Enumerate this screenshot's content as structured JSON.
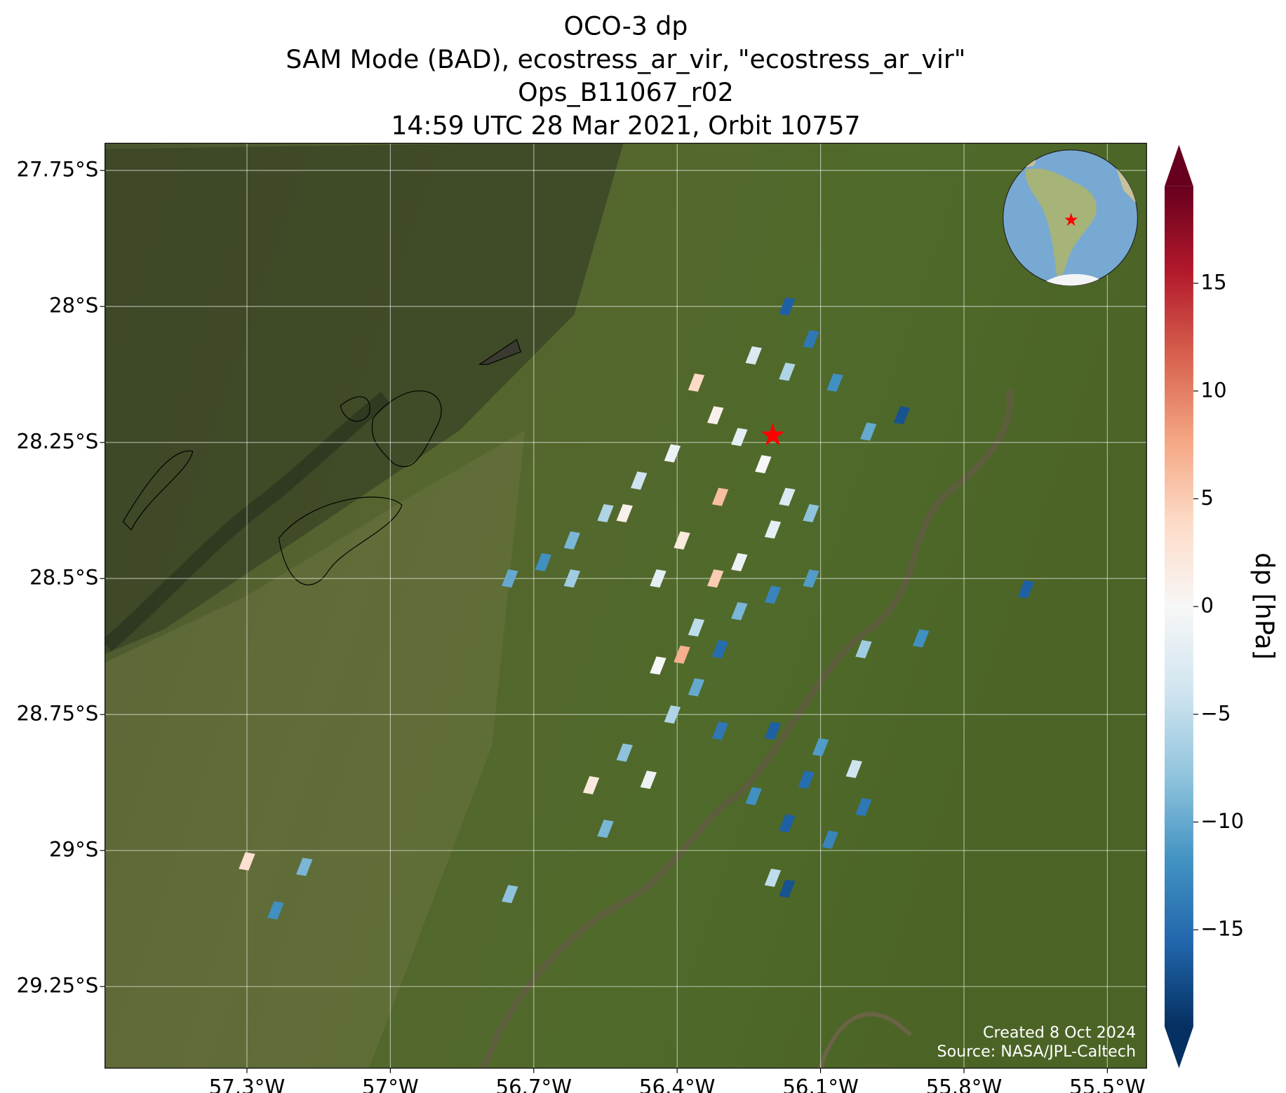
{
  "chart_data": {
    "type": "map",
    "title_lines": [
      "OCO-3 dp",
      "SAM Mode (BAD), ecostress_ar_vir, \"ecostress_ar_vir\"",
      "Ops_B11067_r02",
      "14:59 UTC 28 Mar 2021, Orbit 10757"
    ],
    "xlim": [
      -57.597,
      -55.418
    ],
    "ylim": [
      -29.4,
      -27.7
    ],
    "xticks": [
      {
        "value": -57.3,
        "label": "57.3°W"
      },
      {
        "value": -57,
        "label": "57°W"
      },
      {
        "value": -56.7,
        "label": "56.7°W"
      },
      {
        "value": -56.4,
        "label": "56.4°W"
      },
      {
        "value": -56.1,
        "label": "56.1°W"
      },
      {
        "value": -55.8,
        "label": "55.8°W"
      },
      {
        "value": -55.5,
        "label": "55.5°W"
      }
    ],
    "yticks": [
      {
        "value": -27.75,
        "label": "27.75°S"
      },
      {
        "value": -28,
        "label": "28°S"
      },
      {
        "value": -28.25,
        "label": "28.25°S"
      },
      {
        "value": -28.5,
        "label": "28.5°S"
      },
      {
        "value": -28.75,
        "label": "28.75°S"
      },
      {
        "value": -29,
        "label": "29°S"
      },
      {
        "value": -29.25,
        "label": "29.25°S"
      }
    ],
    "grid": true,
    "colorbar_label": "dp [hPa]",
    "clim": [
      -19.5,
      19.5
    ],
    "colorbar_ticks": [
      {
        "value": -15,
        "label": "−15"
      },
      {
        "value": -10,
        "label": "−10"
      },
      {
        "value": -5,
        "label": "−5"
      },
      0,
      5,
      10,
      15
    ],
    "colormap": [
      "#053061",
      "#2166ac",
      "#4393c3",
      "#92c5de",
      "#d1e5f0",
      "#f7f7f7",
      "#fddbc7",
      "#f4a582",
      "#d6604d",
      "#b2182b",
      "#67001f"
    ],
    "x": [
      -56.36,
      -56.32,
      -56.27,
      -56.22,
      -56.17,
      -56.31,
      -56.41,
      -56.48,
      -56.55,
      -56.62,
      -56.68,
      -56.75,
      -56.39,
      -56.32,
      -56.27,
      -56.2,
      -56.12,
      -56.17,
      -56.12,
      -56.17,
      -56.24,
      -56.07,
      -56.0,
      -55.93,
      -56.36,
      -56.27,
      -56.2,
      -56.12,
      -56.01,
      -55.89,
      -56.44,
      -56.39,
      -56.36,
      -56.41,
      -56.31,
      -56.2,
      -56.1,
      -56.03,
      -56.13,
      -56.24,
      -56.17,
      -56.08,
      -56.51,
      -56.46,
      -56.58,
      -56.55,
      -56.01,
      -56.17,
      -56.2,
      -57.3,
      -57.18,
      -57.24,
      -56.75,
      -55.67,
      -56.51,
      -56.44,
      -56.62,
      -56.31
    ],
    "y": [
      -28.14,
      -28.2,
      -28.24,
      -28.29,
      -28.35,
      -28.35,
      -28.27,
      -28.32,
      -28.38,
      -28.43,
      -28.47,
      -28.5,
      -28.43,
      -28.5,
      -28.47,
      -28.41,
      -28.38,
      -28.12,
      -28.06,
      -28.0,
      -28.09,
      -28.14,
      -28.23,
      -28.2,
      -28.59,
      -28.56,
      -28.53,
      -28.5,
      -28.63,
      -28.61,
      -28.66,
      -28.64,
      -28.7,
      -28.75,
      -28.78,
      -28.78,
      -28.81,
      -28.85,
      -28.87,
      -28.9,
      -28.95,
      -28.98,
      -28.82,
      -28.87,
      -28.88,
      -28.96,
      -28.92,
      -29.07,
      -29.05,
      -29.02,
      -29.03,
      -29.11,
      -29.08,
      -28.52,
      -28.38,
      -28.5,
      -28.5,
      -28.63
    ],
    "values": [
      4,
      1,
      -2,
      0,
      -3,
      6,
      -1,
      -4,
      -6,
      -9,
      -12,
      -10,
      2,
      5,
      -1,
      -2,
      -8,
      -6,
      -14,
      -16,
      -3,
      -12,
      -10,
      -17,
      -5,
      -9,
      -13,
      -11,
      -7,
      -12,
      0,
      7,
      -10,
      -6,
      -14,
      -16,
      -11,
      -4,
      -15,
      -12,
      -16,
      -13,
      -8,
      -1,
      2,
      -9,
      -14,
      -17,
      -5,
      3,
      -9,
      -12,
      -8,
      -16,
      1,
      -2,
      -7,
      -15
    ],
    "target": {
      "lon": -56.2,
      "lat": -28.237,
      "color": "#ff0000"
    },
    "credits": [
      "Created 8 Oct 2024",
      "Source: NASA/JPL-Caltech"
    ]
  }
}
